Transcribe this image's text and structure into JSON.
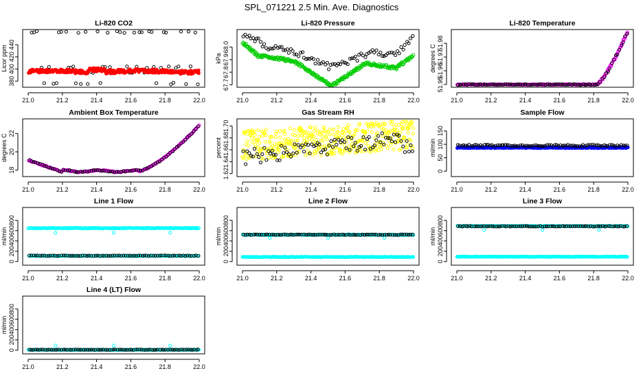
{
  "page_title": "SPL_071221  2.5 Min. Ave. Diagnostics",
  "chart_data": [
    {
      "type": "scatter",
      "title": "Li-820 CO2",
      "ylabel": "Licor ppm",
      "xlim": [
        21.0,
        22.0
      ],
      "ylim": [
        370,
        465
      ],
      "x_ticks": [
        "21.0",
        "21.2",
        "21.4",
        "21.6",
        "21.8",
        "22.0"
      ],
      "y_ticks": [
        {
          "value": 380,
          "label": "380"
        },
        {
          "value": 400,
          "label": "400"
        },
        {
          "value": 420,
          "label": "420"
        },
        {
          "value": 440,
          "label": "440"
        }
      ],
      "series": [
        {
          "name": "black",
          "color": "#000000",
          "style": "open",
          "seed": 11,
          "n": 70,
          "kind": "co2_black"
        },
        {
          "name": "red",
          "color": "#ff0000",
          "style": "filled",
          "seed": 12,
          "n": 280,
          "kind": "co2_red"
        }
      ]
    },
    {
      "type": "scatter",
      "title": "Li-820 Pressure",
      "ylabel": "kPa",
      "xlim": [
        21.0,
        22.0
      ],
      "ylim": [
        67.68,
        68.14
      ],
      "x_ticks": [
        "21.0",
        "21.2",
        "21.4",
        "21.6",
        "21.8",
        "22.0"
      ],
      "y_ticks": [
        {
          "value": 67.7,
          "label": "67.7"
        },
        {
          "value": 67.8,
          "label": "67.8"
        },
        {
          "value": 67.9,
          "label": "67.9"
        },
        {
          "value": 68.0,
          "label": "68.0"
        }
      ],
      "series": [
        {
          "name": "black",
          "color": "#000000",
          "style": "open",
          "seed": 21,
          "n": 90,
          "kind": "press_black"
        },
        {
          "name": "green",
          "color": "#00cc00",
          "style": "open",
          "seed": 22,
          "n": 300,
          "kind": "press_green"
        }
      ]
    },
    {
      "type": "scatter",
      "title": "Li-820 Temperature",
      "ylabel": "degrees C",
      "xlim": [
        21.0,
        22.0
      ],
      "ylim": [
        51.948,
        51.99
      ],
      "x_ticks": [
        "21.0",
        "21.2",
        "21.4",
        "21.6",
        "21.8",
        "22.0"
      ],
      "y_ticks": [
        {
          "value": 51.95,
          "label": "51.95"
        },
        {
          "value": 51.96,
          "label": "51.96"
        },
        {
          "value": 51.97,
          "label": "51.97"
        },
        {
          "value": 51.98,
          "label": "51.98"
        }
      ],
      "series": [
        {
          "name": "magenta",
          "color": "#ff00ff",
          "style": "open",
          "seed": 31,
          "n": 260,
          "kind": "ltemp"
        },
        {
          "name": "black",
          "color": "#000000",
          "style": "open",
          "seed": 32,
          "n": 90,
          "kind": "ltemp"
        }
      ]
    },
    {
      "type": "scatter",
      "title": "Ambient Box Temperature",
      "ylabel": "degrees C",
      "xlim": [
        21.0,
        22.0
      ],
      "ylim": [
        17.3,
        23.6
      ],
      "x_ticks": [
        "21.0",
        "21.2",
        "21.4",
        "21.6",
        "21.8",
        "22.0"
      ],
      "y_ticks": [
        {
          "value": 18,
          "label": "18"
        },
        {
          "value": 20,
          "label": "20"
        },
        {
          "value": 22,
          "label": "22"
        }
      ],
      "series": [
        {
          "name": "magenta",
          "color": "#ff00ff",
          "style": "open",
          "seed": 41,
          "n": 220,
          "kind": "atemp"
        },
        {
          "name": "black",
          "color": "#000000",
          "style": "open",
          "seed": 42,
          "n": 80,
          "kind": "atemp"
        }
      ]
    },
    {
      "type": "scatter",
      "title": "Gas Stream RH",
      "ylabel": "percent",
      "xlim": [
        21.0,
        22.0
      ],
      "ylim": [
        1.615,
        1.712
      ],
      "x_ticks": [
        "21.0",
        "21.2",
        "21.4",
        "21.6",
        "21.8",
        "22.0"
      ],
      "y_ticks": [
        {
          "value": 1.62,
          "label": "1.62"
        },
        {
          "value": 1.64,
          "label": "1.64"
        },
        {
          "value": 1.66,
          "label": "1.66"
        },
        {
          "value": 1.68,
          "label": "1.68"
        },
        {
          "value": 1.7,
          "label": "1.70"
        }
      ],
      "series": [
        {
          "name": "yellow",
          "color": "#ffff00",
          "style": "open",
          "seed": 51,
          "n": 420,
          "kind": "rh_yellow"
        },
        {
          "name": "black",
          "color": "#000000",
          "style": "open",
          "seed": 52,
          "n": 90,
          "kind": "rh_black"
        }
      ]
    },
    {
      "type": "scatter",
      "title": "Sample Flow",
      "ylabel": "ml/min",
      "xlim": [
        21.0,
        22.0
      ],
      "ylim": [
        -20,
        195
      ],
      "x_ticks": [
        "21.0",
        "21.2",
        "21.4",
        "21.6",
        "21.8",
        "22.0"
      ],
      "y_ticks": [
        {
          "value": 0,
          "label": "0"
        },
        {
          "value": 50,
          "label": "50"
        },
        {
          "value": 100,
          "label": "100"
        },
        {
          "value": 150,
          "label": "150"
        }
      ],
      "series": [
        {
          "name": "blue",
          "color": "#0000ff",
          "style": "filled",
          "seed": 61,
          "n": 320,
          "kind": "sflow_blue"
        },
        {
          "name": "black",
          "color": "#000000",
          "style": "open",
          "seed": 62,
          "n": 90,
          "kind": "sflow_black"
        }
      ]
    },
    {
      "type": "scatter",
      "title": "Line 1 Flow",
      "ylabel": "ml/min",
      "xlim": [
        21.0,
        22.0
      ],
      "ylim": [
        -70,
        1050
      ],
      "x_ticks": [
        "21.0",
        "21.2",
        "21.4",
        "21.6",
        "21.8",
        "22.0"
      ],
      "y_ticks": [
        {
          "value": 0,
          "label": "0"
        },
        {
          "value": 200,
          "label": "200"
        },
        {
          "value": 400,
          "label": "400"
        },
        {
          "value": 600,
          "label": "600"
        },
        {
          "value": 800,
          "label": "800"
        }
      ],
      "series": [
        {
          "name": "cyan-high",
          "color": "#00ffff",
          "style": "open",
          "seed": 71,
          "n": 220,
          "kind": "flat",
          "level": 650,
          "jit": 6,
          "outliers": [
            [
              21.16,
              560
            ],
            [
              21.5,
              560
            ],
            [
              21.83,
              560
            ]
          ]
        },
        {
          "name": "cyan-low",
          "color": "#00ffff",
          "style": "open",
          "seed": 72,
          "n": 160,
          "kind": "flat",
          "level": 110,
          "jit": 4
        },
        {
          "name": "black",
          "color": "#000000",
          "style": "open",
          "seed": 73,
          "n": 80,
          "kind": "flat",
          "level": 115,
          "jit": 5
        }
      ]
    },
    {
      "type": "scatter",
      "title": "Line 2 Flow",
      "ylabel": "ml/min",
      "xlim": [
        21.0,
        22.0
      ],
      "ylim": [
        -70,
        1050
      ],
      "x_ticks": [
        "21.0",
        "21.2",
        "21.4",
        "21.6",
        "21.8",
        "22.0"
      ],
      "y_ticks": [
        {
          "value": 0,
          "label": "0"
        },
        {
          "value": 200,
          "label": "200"
        },
        {
          "value": 400,
          "label": "400"
        },
        {
          "value": 600,
          "label": "600"
        },
        {
          "value": 800,
          "label": "800"
        }
      ],
      "series": [
        {
          "name": "cyan-high",
          "color": "#00ffff",
          "style": "open",
          "seed": 81,
          "n": 200,
          "kind": "flat",
          "level": 520,
          "jit": 6,
          "outliers": [
            [
              21.16,
              460
            ],
            [
              21.5,
              460
            ],
            [
              21.83,
              460
            ]
          ]
        },
        {
          "name": "black",
          "color": "#000000",
          "style": "open",
          "seed": 82,
          "n": 85,
          "kind": "flat",
          "level": 522,
          "jit": 6
        },
        {
          "name": "cyan-low",
          "color": "#00ffff",
          "style": "filled",
          "seed": 83,
          "n": 220,
          "kind": "flat",
          "level": 90,
          "jit": 5
        }
      ]
    },
    {
      "type": "scatter",
      "title": "Line 3 Flow",
      "ylabel": "ml/min",
      "xlim": [
        21.0,
        22.0
      ],
      "ylim": [
        -70,
        1050
      ],
      "x_ticks": [
        "21.0",
        "21.2",
        "21.4",
        "21.6",
        "21.8",
        "22.0"
      ],
      "y_ticks": [
        {
          "value": 0,
          "label": "0"
        },
        {
          "value": 200,
          "label": "200"
        },
        {
          "value": 400,
          "label": "400"
        },
        {
          "value": 600,
          "label": "600"
        },
        {
          "value": 800,
          "label": "800"
        }
      ],
      "series": [
        {
          "name": "cyan-high",
          "color": "#00ffff",
          "style": "open",
          "seed": 91,
          "n": 200,
          "kind": "flat",
          "level": 690,
          "jit": 6,
          "outliers": [
            [
              21.16,
              615
            ],
            [
              21.5,
              615
            ],
            [
              21.83,
              615
            ]
          ]
        },
        {
          "name": "black",
          "color": "#000000",
          "style": "open",
          "seed": 92,
          "n": 85,
          "kind": "flat",
          "level": 685,
          "jit": 6
        },
        {
          "name": "cyan-low",
          "color": "#00ffff",
          "style": "filled",
          "seed": 93,
          "n": 220,
          "kind": "flat",
          "level": 95,
          "jit": 5
        }
      ]
    },
    {
      "type": "scatter",
      "title": "Line 4 (LT) Flow",
      "ylabel": "ml/min",
      "xlim": [
        21.0,
        22.0
      ],
      "ylim": [
        -70,
        1050
      ],
      "x_ticks": [
        "21.0",
        "21.2",
        "21.4",
        "21.6",
        "21.8",
        "22.0"
      ],
      "y_ticks": [
        {
          "value": 0,
          "label": "0"
        },
        {
          "value": 200,
          "label": "200"
        },
        {
          "value": 400,
          "label": "400"
        },
        {
          "value": 600,
          "label": "600"
        },
        {
          "value": 800,
          "label": "800"
        }
      ],
      "series": [
        {
          "name": "cyan",
          "color": "#00ffff",
          "style": "open",
          "seed": 101,
          "n": 200,
          "kind": "flat",
          "level": 8,
          "jit": 3,
          "outliers": [
            [
              21.16,
              90
            ],
            [
              21.5,
              90
            ],
            [
              21.83,
              90
            ]
          ]
        },
        {
          "name": "black",
          "color": "#000000",
          "style": "open",
          "seed": 102,
          "n": 85,
          "kind": "flat",
          "level": 10,
          "jit": 4
        }
      ]
    }
  ]
}
